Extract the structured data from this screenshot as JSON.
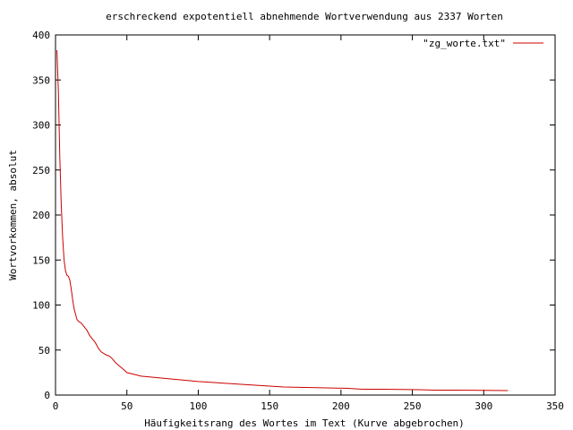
{
  "chart_data": {
    "type": "line",
    "title": "erschreckend expotentiell abnehmende Wortverwendung aus 2337 Worten",
    "xlabel": "Häufigkeitsrang des Wortes im Text (Kurve abgebrochen)",
    "ylabel": "Wortvorkommen, absolut",
    "xlim": [
      0,
      350
    ],
    "ylim": [
      0,
      400
    ],
    "xticks": [
      0,
      50,
      100,
      150,
      200,
      250,
      300,
      350
    ],
    "yticks": [
      0,
      50,
      100,
      150,
      200,
      250,
      300,
      350,
      400
    ],
    "legend": "top-right",
    "grid": false,
    "series": [
      {
        "name": "\"zg_worte.txt\"",
        "color": "#cc0000",
        "points": [
          [
            1,
            383
          ],
          [
            2,
            338
          ],
          [
            3,
            265
          ],
          [
            4,
            212
          ],
          [
            5,
            175
          ],
          [
            6,
            150
          ],
          [
            7,
            138
          ],
          [
            8,
            133
          ],
          [
            9,
            132
          ],
          [
            10,
            128
          ],
          [
            11,
            118
          ],
          [
            12,
            106
          ],
          [
            13,
            96
          ],
          [
            14,
            90
          ],
          [
            15,
            84
          ],
          [
            16,
            82
          ],
          [
            18,
            80
          ],
          [
            20,
            76
          ],
          [
            22,
            72
          ],
          [
            24,
            66
          ],
          [
            26,
            62
          ],
          [
            28,
            58
          ],
          [
            30,
            52
          ],
          [
            32,
            48
          ],
          [
            35,
            45
          ],
          [
            38,
            43
          ],
          [
            40,
            40
          ],
          [
            42,
            36
          ],
          [
            45,
            32
          ],
          [
            48,
            28
          ],
          [
            50,
            25
          ],
          [
            55,
            23
          ],
          [
            60,
            21
          ],
          [
            70,
            19.5
          ],
          [
            80,
            18
          ],
          [
            90,
            16.5
          ],
          [
            100,
            15
          ],
          [
            110,
            14
          ],
          [
            120,
            13
          ],
          [
            130,
            12
          ],
          [
            140,
            11
          ],
          [
            150,
            10
          ],
          [
            160,
            9
          ],
          [
            175,
            8.5
          ],
          [
            190,
            8
          ],
          [
            205,
            7.5
          ],
          [
            215,
            6.5
          ],
          [
            230,
            6.5
          ],
          [
            255,
            6
          ],
          [
            265,
            5.5
          ],
          [
            280,
            5.5
          ],
          [
            300,
            5.2
          ],
          [
            317,
            5
          ]
        ]
      }
    ]
  }
}
